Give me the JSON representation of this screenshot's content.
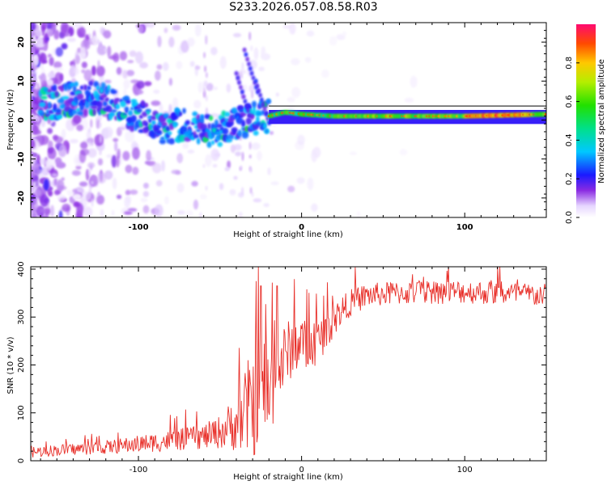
{
  "title": "S233.2026.057.08.58.R03",
  "chart_data": [
    {
      "type": "heatmap",
      "name": "spectrogram",
      "xlabel": "Height of straight line (km)",
      "ylabel": "Frequency (Hz)",
      "xlim": [
        -166,
        150
      ],
      "ylim": [
        -25,
        25
      ],
      "xticks": [
        {
          "v": -100,
          "label": "-100"
        },
        {
          "v": 0,
          "label": "0"
        },
        {
          "v": 100,
          "label": "100"
        }
      ],
      "yticks": [
        {
          "v": 20,
          "label": "20"
        },
        {
          "v": 10,
          "label": "10"
        },
        {
          "v": 0,
          "label": "0"
        },
        {
          "v": -10,
          "label": "-10"
        },
        {
          "v": -20,
          "label": "-20"
        }
      ],
      "colorbar": {
        "label": "Normalized spectral amplitude",
        "range": [
          0,
          1
        ],
        "ticks": [
          {
            "v": 0.0,
            "label": "0.0"
          },
          {
            "v": 0.2,
            "label": "0.2"
          },
          {
            "v": 0.4,
            "label": "0.4"
          },
          {
            "v": 0.6,
            "label": "0.6"
          },
          {
            "v": 0.8,
            "label": "0.8"
          }
        ]
      },
      "ridge": {
        "description": "dominant frequency ridge",
        "points": [
          [
            -160,
            4
          ],
          [
            -130,
            6
          ],
          [
            -115,
            4
          ],
          [
            -100,
            1
          ],
          [
            -85,
            -2
          ],
          [
            -70,
            -1
          ],
          [
            -55,
            -3
          ],
          [
            -40,
            -1
          ],
          [
            -30,
            0
          ],
          [
            -20,
            1
          ],
          [
            -10,
            2
          ],
          [
            0,
            1.5
          ],
          [
            20,
            1
          ],
          [
            60,
            1
          ],
          [
            100,
            1
          ],
          [
            150,
            1.5
          ]
        ]
      }
    },
    {
      "type": "line",
      "name": "snr",
      "xlabel": "Height of straight line (km)",
      "ylabel": "SNR (10 * v/v)",
      "xlim": [
        -166,
        150
      ],
      "ylim": [
        0,
        405
      ],
      "xticks": [
        {
          "v": -100,
          "label": "-100"
        },
        {
          "v": 0,
          "label": "0"
        },
        {
          "v": 100,
          "label": "100"
        }
      ],
      "yticks": [
        {
          "v": 0,
          "label": "0"
        },
        {
          "v": 100,
          "label": "100"
        },
        {
          "v": 200,
          "label": "200"
        },
        {
          "v": 300,
          "label": "300"
        },
        {
          "v": 400,
          "label": "400"
        }
      ],
      "color": "#e8302a",
      "trend_x": [
        -166,
        -150,
        -120,
        -100,
        -80,
        -60,
        -50,
        -40,
        -35,
        -30,
        -25,
        -20,
        -15,
        -10,
        -5,
        0,
        5,
        10,
        15,
        20,
        25,
        30,
        40,
        50,
        60,
        80,
        100,
        120,
        150
      ],
      "trend_y": [
        18,
        22,
        28,
        35,
        42,
        50,
        60,
        80,
        100,
        120,
        160,
        140,
        180,
        220,
        240,
        250,
        230,
        250,
        270,
        295,
        315,
        330,
        345,
        348,
        350,
        352,
        353,
        350,
        345
      ],
      "noise_amplitude": [
        12,
        12,
        14,
        18,
        22,
        26,
        35,
        60,
        90,
        120,
        120,
        100,
        80,
        70,
        60,
        55,
        50,
        45,
        40,
        35,
        30,
        28,
        26,
        25,
        25,
        25,
        25,
        25,
        25
      ],
      "spikes": [
        {
          "x": -28,
          "y": 375
        },
        {
          "x": -25,
          "y": 365
        },
        {
          "x": -18,
          "y": 372
        },
        {
          "x": -15,
          "y": 365
        },
        {
          "x": 90,
          "y": 405
        }
      ]
    }
  ]
}
